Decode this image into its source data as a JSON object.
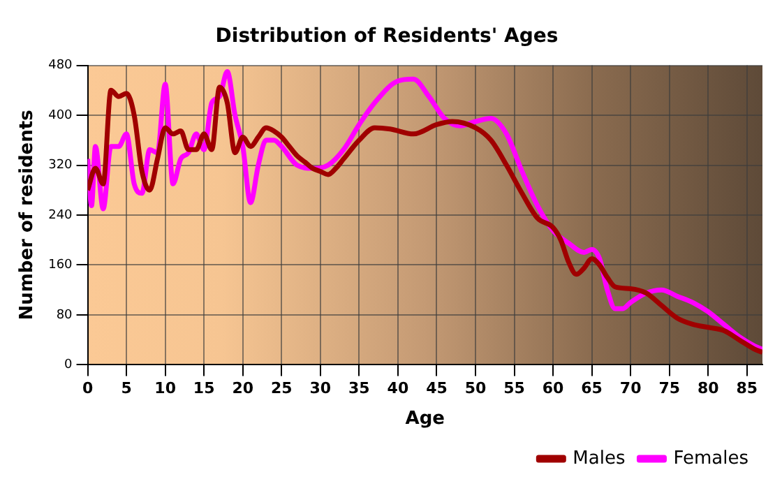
{
  "chart_data": {
    "type": "line",
    "title": "Distribution of Residents' Ages",
    "xlabel": "Age",
    "ylabel": "Number of residents",
    "xlim": [
      0,
      87
    ],
    "xticks": [
      0,
      5,
      10,
      15,
      20,
      25,
      30,
      35,
      40,
      45,
      50,
      55,
      60,
      65,
      70,
      75,
      80,
      85
    ],
    "ylim": [
      0,
      480
    ],
    "yticks": [
      0,
      80,
      160,
      240,
      320,
      400,
      480
    ],
    "grid": true,
    "legend": "bottom right",
    "marker": "none",
    "line_style": "solid",
    "series": [
      {
        "name": "Males",
        "color": "#a00000",
        "x": [
          0,
          1,
          2,
          3,
          4,
          5,
          6,
          7,
          8,
          9,
          10,
          11,
          12,
          13,
          14,
          15,
          16,
          17,
          18,
          19,
          20,
          21,
          22,
          23,
          24,
          25,
          26,
          27,
          28,
          29,
          30,
          31,
          32,
          33,
          35,
          37,
          39,
          42,
          45,
          47,
          50,
          52,
          54,
          56,
          58,
          60,
          61,
          62,
          63,
          64,
          65,
          66,
          67,
          68,
          70,
          72,
          74,
          76,
          78,
          80,
          82,
          84,
          86,
          87
        ],
        "values": [
          280,
          315,
          290,
          440,
          430,
          435,
          400,
          310,
          280,
          330,
          380,
          370,
          375,
          345,
          345,
          370,
          345,
          445,
          420,
          340,
          365,
          350,
          365,
          380,
          375,
          365,
          350,
          335,
          325,
          315,
          310,
          305,
          315,
          330,
          360,
          380,
          378,
          370,
          385,
          390,
          380,
          360,
          320,
          275,
          235,
          220,
          200,
          165,
          145,
          155,
          170,
          160,
          140,
          125,
          122,
          115,
          95,
          75,
          65,
          60,
          55,
          40,
          25,
          20
        ]
      },
      {
        "name": "Females",
        "color": "#ff00ff",
        "x": [
          0,
          0.5,
          1,
          2,
          3,
          4,
          5,
          6,
          7,
          8,
          9,
          10,
          11,
          12,
          13,
          14,
          15,
          16,
          17,
          18,
          19,
          20,
          21,
          22,
          23,
          24,
          25,
          27,
          29,
          31,
          33,
          35,
          37,
          40,
          42,
          44,
          46,
          48,
          50,
          52,
          54,
          56,
          58,
          60,
          62,
          64,
          65,
          66,
          67,
          68,
          69,
          70,
          72,
          74,
          76,
          78,
          80,
          82,
          84,
          86,
          87
        ],
        "values": [
          330,
          255,
          350,
          250,
          350,
          350,
          370,
          290,
          275,
          345,
          340,
          450,
          290,
          330,
          340,
          370,
          345,
          420,
          430,
          470,
          400,
          350,
          260,
          320,
          360,
          360,
          350,
          320,
          315,
          320,
          345,
          385,
          420,
          455,
          458,
          430,
          395,
          383,
          390,
          395,
          370,
          310,
          255,
          215,
          195,
          180,
          185,
          170,
          120,
          90,
          90,
          100,
          115,
          120,
          110,
          100,
          85,
          65,
          45,
          30,
          25
        ]
      }
    ]
  }
}
